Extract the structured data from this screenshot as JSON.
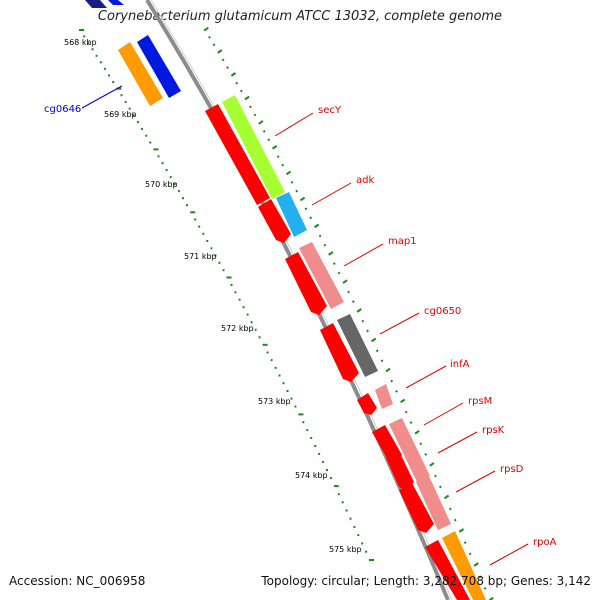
{
  "map": {
    "title": "Corynebacterium glutamicum ATCC 13032, complete genome",
    "accession": "Accession: NC_006958",
    "summary": "Topology: circular; Length: 3,282,708 bp; Genes: 3,142"
  },
  "ticks": [
    {
      "label": "568 kbp"
    },
    {
      "label": "569 kbp"
    },
    {
      "label": "570 kbp"
    },
    {
      "label": "571 kbp"
    },
    {
      "label": "572 kbp"
    },
    {
      "label": "573 kbp"
    },
    {
      "label": "574 kbp"
    },
    {
      "label": "575 kbp"
    }
  ],
  "genes": [
    {
      "name": "secY"
    },
    {
      "name": "adk"
    },
    {
      "name": "map1"
    },
    {
      "name": "cg0650"
    },
    {
      "name": "infA"
    },
    {
      "name": "rpsM"
    },
    {
      "name": "rpsK"
    },
    {
      "name": "rpsD"
    },
    {
      "name": "rpoA"
    },
    {
      "name": "cg0646"
    }
  ],
  "colors": {
    "backbone": "#8c8c8c",
    "cds": "#ff0000",
    "label_red": "#dd0000",
    "label_blue": "#0000cc",
    "gc_dots": "#1a8a1a",
    "secY": "#a6ff33",
    "adk": "#22b0ee",
    "ribosomal": "#f08c8c",
    "cg0650": "#666666",
    "cg0646": "#ff9a00",
    "blue_track": "#0018e0"
  }
}
